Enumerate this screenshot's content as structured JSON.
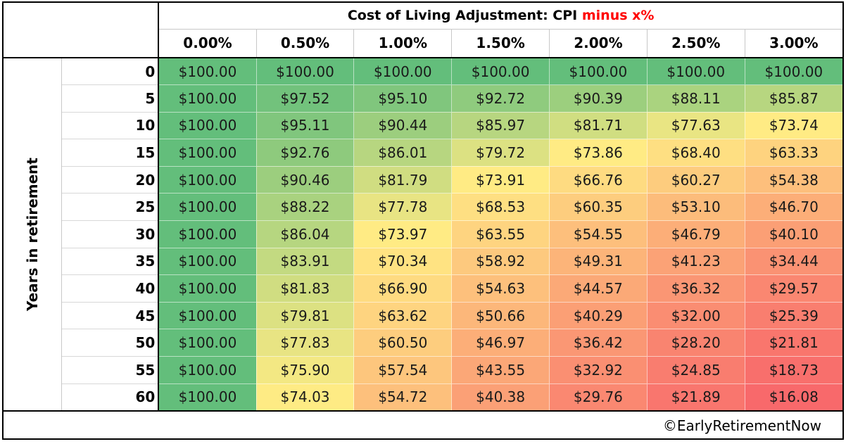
{
  "header": {
    "title_prefix": "Cost of Living Adjustment: CPI ",
    "title_highlight": "minus x%",
    "highlight_color": "#ff0000"
  },
  "row_axis_label": "Years in retirement",
  "columns": [
    "0.00%",
    "0.50%",
    "1.00%",
    "1.50%",
    "2.00%",
    "2.50%",
    "3.00%"
  ],
  "rows": [
    {
      "year": "0",
      "values": [
        "$100.00",
        "$100.00",
        "$100.00",
        "$100.00",
        "$100.00",
        "$100.00",
        "$100.00"
      ]
    },
    {
      "year": "5",
      "values": [
        "$100.00",
        "$97.52",
        "$95.10",
        "$92.72",
        "$90.39",
        "$88.11",
        "$85.87"
      ]
    },
    {
      "year": "10",
      "values": [
        "$100.00",
        "$95.11",
        "$90.44",
        "$85.97",
        "$81.71",
        "$77.63",
        "$73.74"
      ]
    },
    {
      "year": "15",
      "values": [
        "$100.00",
        "$92.76",
        "$86.01",
        "$79.72",
        "$73.86",
        "$68.40",
        "$63.33"
      ]
    },
    {
      "year": "20",
      "values": [
        "$100.00",
        "$90.46",
        "$81.79",
        "$73.91",
        "$66.76",
        "$60.27",
        "$54.38"
      ]
    },
    {
      "year": "25",
      "values": [
        "$100.00",
        "$88.22",
        "$77.78",
        "$68.53",
        "$60.35",
        "$53.10",
        "$46.70"
      ]
    },
    {
      "year": "30",
      "values": [
        "$100.00",
        "$86.04",
        "$73.97",
        "$63.55",
        "$54.55",
        "$46.79",
        "$40.10"
      ]
    },
    {
      "year": "35",
      "values": [
        "$100.00",
        "$83.91",
        "$70.34",
        "$58.92",
        "$49.31",
        "$41.23",
        "$34.44"
      ]
    },
    {
      "year": "40",
      "values": [
        "$100.00",
        "$81.83",
        "$66.90",
        "$54.63",
        "$44.57",
        "$36.32",
        "$29.57"
      ]
    },
    {
      "year": "45",
      "values": [
        "$100.00",
        "$79.81",
        "$63.62",
        "$50.66",
        "$40.29",
        "$32.00",
        "$25.39"
      ]
    },
    {
      "year": "50",
      "values": [
        "$100.00",
        "$77.83",
        "$60.50",
        "$46.97",
        "$36.42",
        "$28.20",
        "$21.81"
      ]
    },
    {
      "year": "55",
      "values": [
        "$100.00",
        "$75.90",
        "$57.54",
        "$43.55",
        "$32.92",
        "$24.85",
        "$18.73"
      ]
    },
    {
      "year": "60",
      "values": [
        "$100.00",
        "$74.03",
        "$54.72",
        "$40.38",
        "$29.76",
        "$21.89",
        "$16.08"
      ]
    }
  ],
  "color_scale": {
    "low": "#f8696b",
    "mid": "#ffeb84",
    "high": "#63be7b"
  },
  "footer": "©EarlyRetirementNow"
}
